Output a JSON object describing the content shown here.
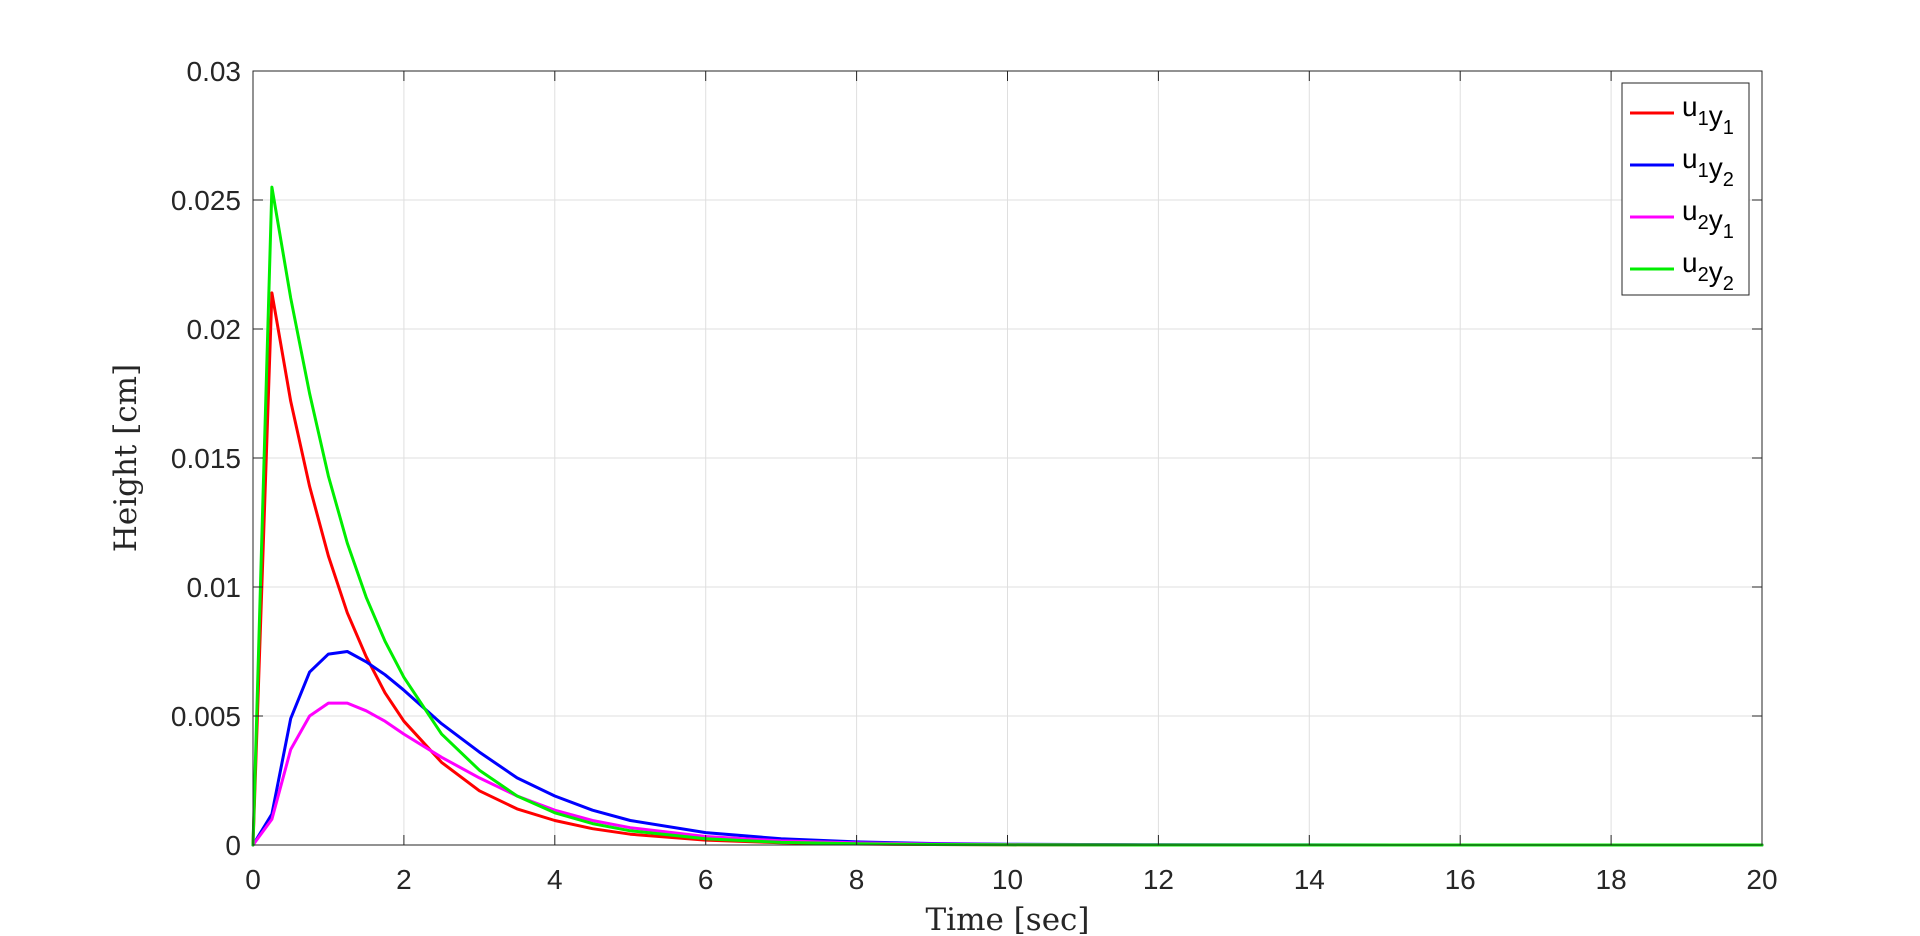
{
  "chart_data": {
    "type": "line",
    "title": "",
    "xlabel": "Time [sec]",
    "ylabel": "Height [cm]",
    "xlim": [
      0,
      20
    ],
    "ylim": [
      0,
      0.03
    ],
    "xticks": [
      0,
      2,
      4,
      6,
      8,
      10,
      12,
      14,
      16,
      18,
      20
    ],
    "xtick_labels": [
      "0",
      "2",
      "4",
      "6",
      "8",
      "10",
      "12",
      "14",
      "16",
      "18",
      "20"
    ],
    "yticks": [
      0,
      0.005,
      0.01,
      0.015,
      0.02,
      0.025,
      0.03
    ],
    "ytick_labels": [
      "0",
      "0.005",
      "0.01",
      "0.015",
      "0.02",
      "0.025",
      "0.03"
    ],
    "grid": true,
    "legend_position": "top-right",
    "x": [
      0,
      0.25,
      0.5,
      0.75,
      1,
      1.25,
      1.5,
      1.75,
      2,
      2.5,
      3,
      3.5,
      4,
      4.5,
      5,
      6,
      7,
      8,
      9,
      10,
      12,
      14,
      16,
      18,
      20
    ],
    "series": [
      {
        "name": "u1y1",
        "label_main": [
          "u",
          "y"
        ],
        "label_sub": [
          "1",
          "1"
        ],
        "color": "#ff0000",
        "values": [
          0,
          0.0214,
          0.0172,
          0.0139,
          0.0112,
          0.009,
          0.0073,
          0.0059,
          0.0048,
          0.0032,
          0.0021,
          0.0014,
          0.00095,
          0.00063,
          0.00042,
          0.00019,
          8.5e-05,
          4e-05,
          1.8e-05,
          8e-06,
          1.6e-06,
          0,
          0,
          0,
          0
        ]
      },
      {
        "name": "u1y2",
        "label_main": [
          "u",
          "y"
        ],
        "label_sub": [
          "1",
          "2"
        ],
        "color": "#0000ff",
        "values": [
          0,
          0.0012,
          0.0049,
          0.0067,
          0.0074,
          0.0075,
          0.0071,
          0.0066,
          0.006,
          0.0047,
          0.0036,
          0.0026,
          0.0019,
          0.00135,
          0.00095,
          0.00048,
          0.00024,
          0.00012,
          6e-05,
          3e-05,
          7.5e-06,
          2e-06,
          0,
          0,
          0
        ]
      },
      {
        "name": "u2y1",
        "label_main": [
          "u",
          "y"
        ],
        "label_sub": [
          "2",
          "1"
        ],
        "color": "#ff00ff",
        "values": [
          0,
          0.001,
          0.0037,
          0.005,
          0.0055,
          0.0055,
          0.0052,
          0.0048,
          0.0043,
          0.0034,
          0.0026,
          0.0019,
          0.00135,
          0.00095,
          0.00067,
          0.00033,
          0.00016,
          8e-05,
          4e-05,
          2e-05,
          5e-06,
          1e-06,
          0,
          0,
          0
        ]
      },
      {
        "name": "u2y2",
        "label_main": [
          "u",
          "y"
        ],
        "label_sub": [
          "2",
          "2"
        ],
        "color": "#00ee00",
        "values": [
          0,
          0.0255,
          0.0212,
          0.0175,
          0.0143,
          0.0117,
          0.0096,
          0.0079,
          0.0065,
          0.0043,
          0.0029,
          0.0019,
          0.00125,
          0.00083,
          0.00055,
          0.00024,
          0.0001,
          4.5e-05,
          2e-05,
          9e-06,
          1.8e-06,
          0,
          0,
          0,
          0
        ]
      }
    ]
  }
}
